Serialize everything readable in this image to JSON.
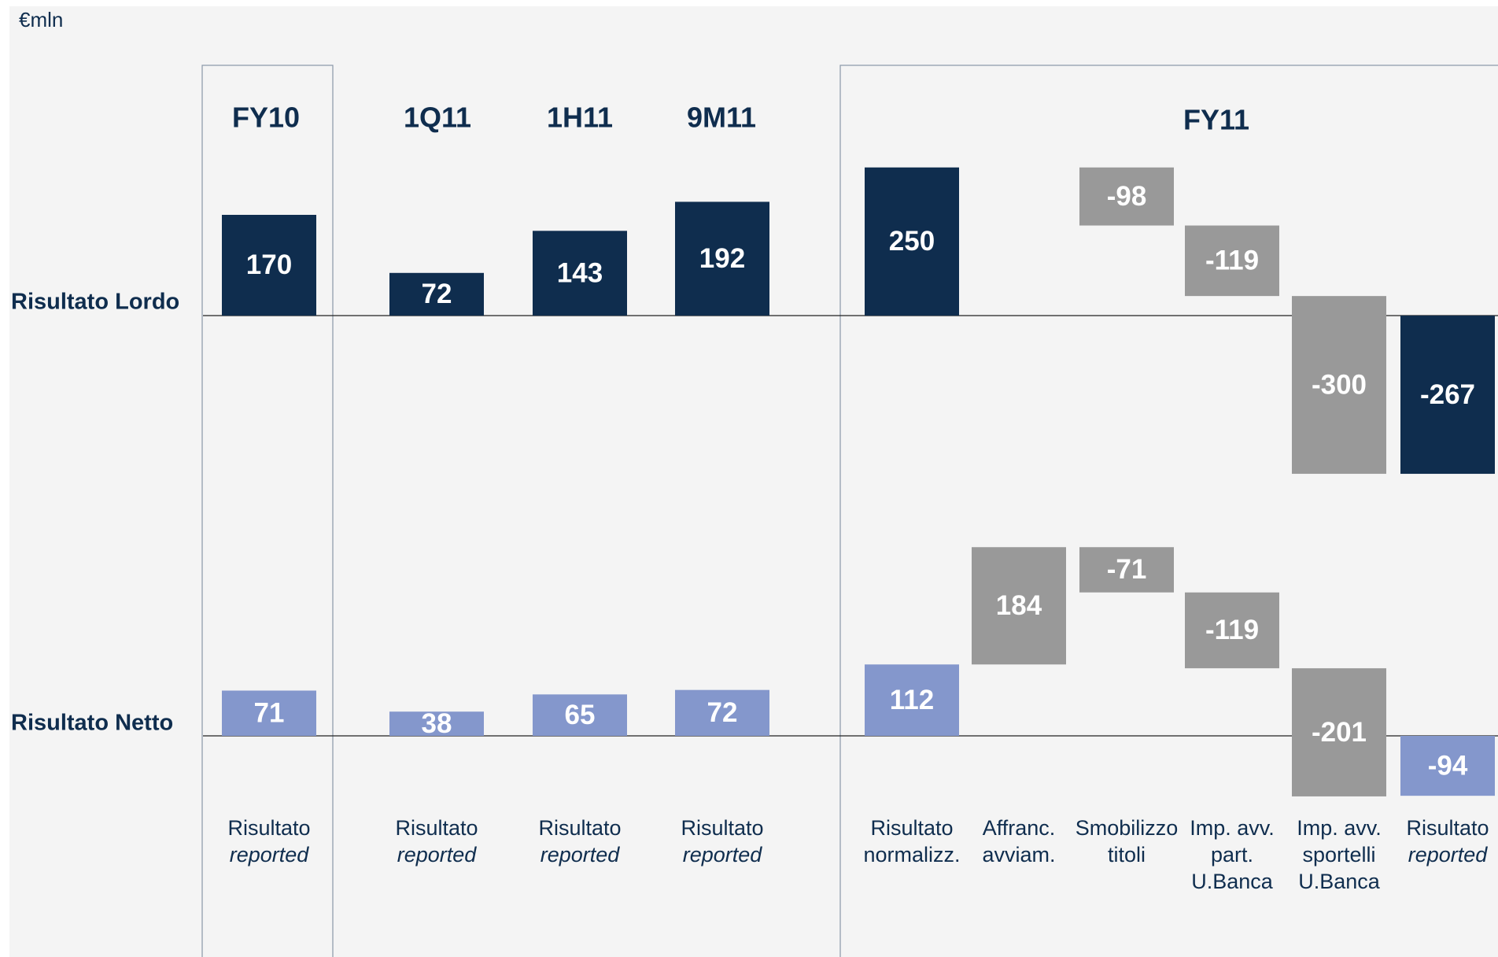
{
  "chart_data": {
    "type": "waterfall",
    "unit": "€mln",
    "groups": [
      {
        "name": "FY10",
        "boxed": true,
        "categories": [
          {
            "lines": [
              "Risultato"
            ],
            "italic": [
              "reported"
            ]
          }
        ]
      },
      {
        "name": "1Q11",
        "boxed": false,
        "categories": [
          {
            "lines": [
              "Risultato"
            ],
            "italic": [
              "reported"
            ]
          }
        ]
      },
      {
        "name": "1H11",
        "boxed": false,
        "categories": [
          {
            "lines": [
              "Risultato"
            ],
            "italic": [
              "reported"
            ]
          }
        ]
      },
      {
        "name": "9M11",
        "boxed": false,
        "categories": [
          {
            "lines": [
              "Risultato"
            ],
            "italic": [
              "reported"
            ]
          }
        ]
      },
      {
        "name": "FY11",
        "boxed": true,
        "categories": [
          {
            "lines": [
              "Risultato",
              "normalizz."
            ],
            "italic": []
          },
          {
            "lines": [
              "Affranc.",
              "avviam."
            ],
            "italic": []
          },
          {
            "lines": [
              "Smobilizzo",
              "titoli"
            ],
            "italic": []
          },
          {
            "lines": [
              "Imp. avv.",
              "part.",
              "U.Banca"
            ],
            "italic": []
          },
          {
            "lines": [
              "Imp. avv.",
              "sportelli",
              "U.Banca"
            ],
            "italic": []
          },
          {
            "lines": [
              "Risultato"
            ],
            "italic": [
              "reported"
            ]
          }
        ]
      }
    ],
    "series": [
      {
        "name": "Risultato Lordo",
        "color": "#0f2d4e",
        "delta_color": "#999999",
        "values": [
          170,
          72,
          143,
          192,
          250,
          null,
          -98,
          -119,
          -300,
          -267
        ]
      },
      {
        "name": "Risultato Netto",
        "color": "#8497cc",
        "delta_color": "#999999",
        "values": [
          71,
          38,
          65,
          72,
          112,
          184,
          -71,
          -119,
          -201,
          -94
        ]
      }
    ]
  }
}
